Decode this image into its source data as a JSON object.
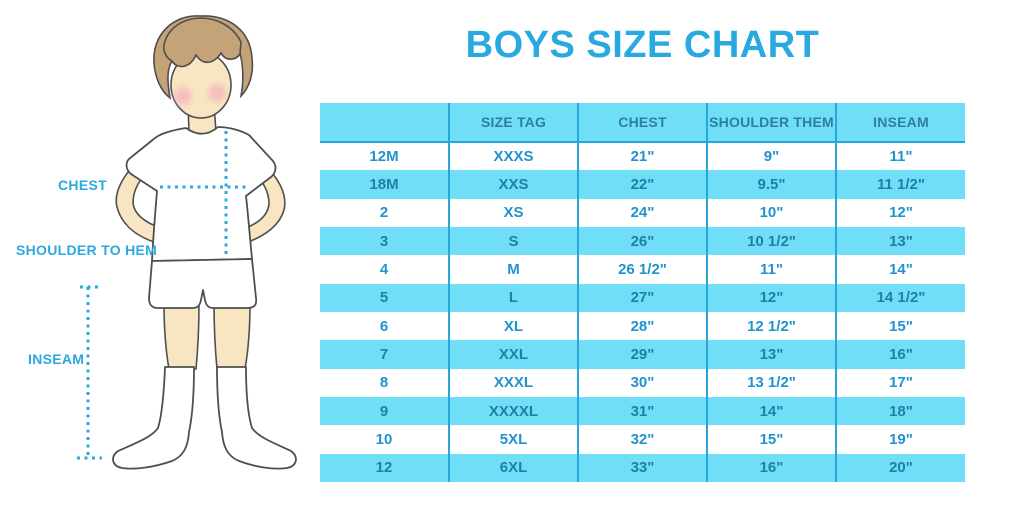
{
  "title": "BOYS SIZE CHART",
  "colors": {
    "accent": "#29A9E0",
    "row_blue": "#71DEF8",
    "divider": "#2AA5D8",
    "cell_text": "#2193CC",
    "cell_text_blue": "#1F7FA8",
    "header_text": "#2C7FA0",
    "skin": "#F8E5C1",
    "hair": "#C3A377",
    "blush": "#F2A9BE",
    "outline": "#4F4F4F"
  },
  "diagram": {
    "labels": [
      {
        "text": "CHEST"
      },
      {
        "text": "SHOULDER TO HEM"
      },
      {
        "text": "INSEAM"
      }
    ]
  },
  "table": {
    "headers": [
      "",
      "SIZE TAG",
      "CHEST",
      "SHOULDER THEM",
      "INSEAM"
    ],
    "rows": [
      [
        "12M",
        "XXXS",
        "21\"",
        "9\"",
        "11\""
      ],
      [
        "18M",
        "XXS",
        "22\"",
        "9.5\"",
        "11 1/2\""
      ],
      [
        "2",
        "XS",
        "24\"",
        "10\"",
        "12\""
      ],
      [
        "3",
        "S",
        "26\"",
        "10 1/2\"",
        "13\""
      ],
      [
        "4",
        "M",
        "26 1/2\"",
        "11\"",
        "14\""
      ],
      [
        "5",
        "L",
        "27\"",
        "12\"",
        "14 1/2\""
      ],
      [
        "6",
        "XL",
        "28\"",
        "12 1/2\"",
        "15\""
      ],
      [
        "7",
        "XXL",
        "29\"",
        "13\"",
        "16\""
      ],
      [
        "8",
        "XXXL",
        "30\"",
        "13 1/2\"",
        "17\""
      ],
      [
        "9",
        "XXXXL",
        "31\"",
        "14\"",
        "18\""
      ],
      [
        "10",
        "5XL",
        "32\"",
        "15\"",
        "19\""
      ],
      [
        "12",
        "6XL",
        "33\"",
        "16\"",
        "20\""
      ]
    ]
  }
}
